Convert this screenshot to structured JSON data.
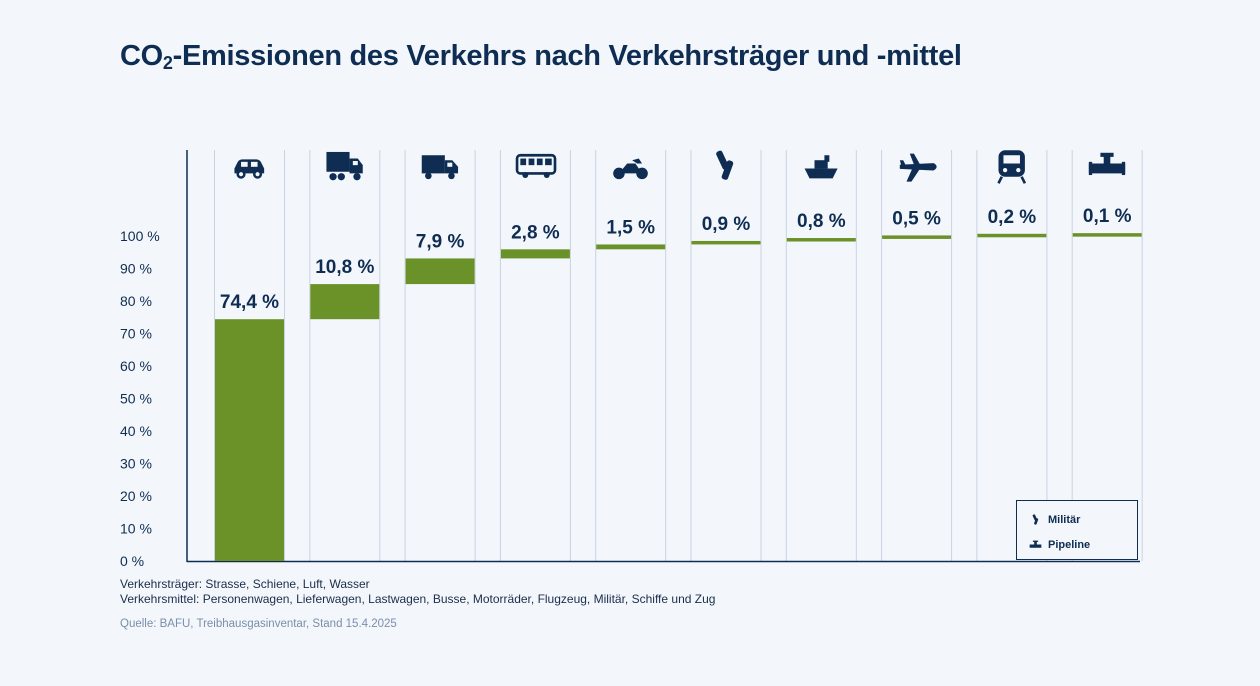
{
  "title": {
    "main": "CO",
    "sub": "2",
    "rest": "-Emissionen des Verkehrs nach Verkehrsträger und -mittel"
  },
  "chart_data": {
    "type": "bar",
    "subtype": "waterfall",
    "categories": [
      "Personenwagen",
      "Lastwagen",
      "Lieferwagen",
      "Busse",
      "Motorräder",
      "Militär",
      "Schiffe",
      "Flugzeug",
      "Zug",
      "Pipeline"
    ],
    "icons": [
      "car-icon",
      "truck-icon",
      "van-icon",
      "bus-icon",
      "motorcycle-icon",
      "military-icon",
      "ship-icon",
      "airplane-icon",
      "train-icon",
      "pipeline-icon"
    ],
    "values": [
      74.4,
      10.8,
      7.9,
      2.8,
      1.5,
      0.9,
      0.8,
      0.5,
      0.2,
      0.1
    ],
    "labels": [
      "74,4 %",
      "10,8 %",
      "7,9 %",
      "2,8 %",
      "1,5 %",
      "0,9 %",
      "0,8 %",
      "0,5 %",
      "0,2 %",
      "0,1 %"
    ],
    "yticks": [
      "0 %",
      "10 %",
      "20 %",
      "30 %",
      "40 %",
      "50 %",
      "60 %",
      "70 %",
      "80 %",
      "90 %",
      "100 %"
    ],
    "ylim": [
      0,
      100
    ],
    "bar_color": "#6b9228",
    "text_color": "#0f2d52",
    "grid_color": "#c8d3e2"
  },
  "legend": {
    "military": "Militär",
    "pipeline": "Pipeline"
  },
  "notes": {
    "line1": "Verkehrsträger: Strasse, Schiene, Luft, Wasser",
    "line2": "Verkehrsmittel: Personenwagen, Lieferwagen, Lastwagen, Busse, Motorräder, Flugzeug, Militär, Schiffe und Zug"
  },
  "source": "Quelle: BAFU, Treibhausgasinventar, Stand 15.4.2025"
}
